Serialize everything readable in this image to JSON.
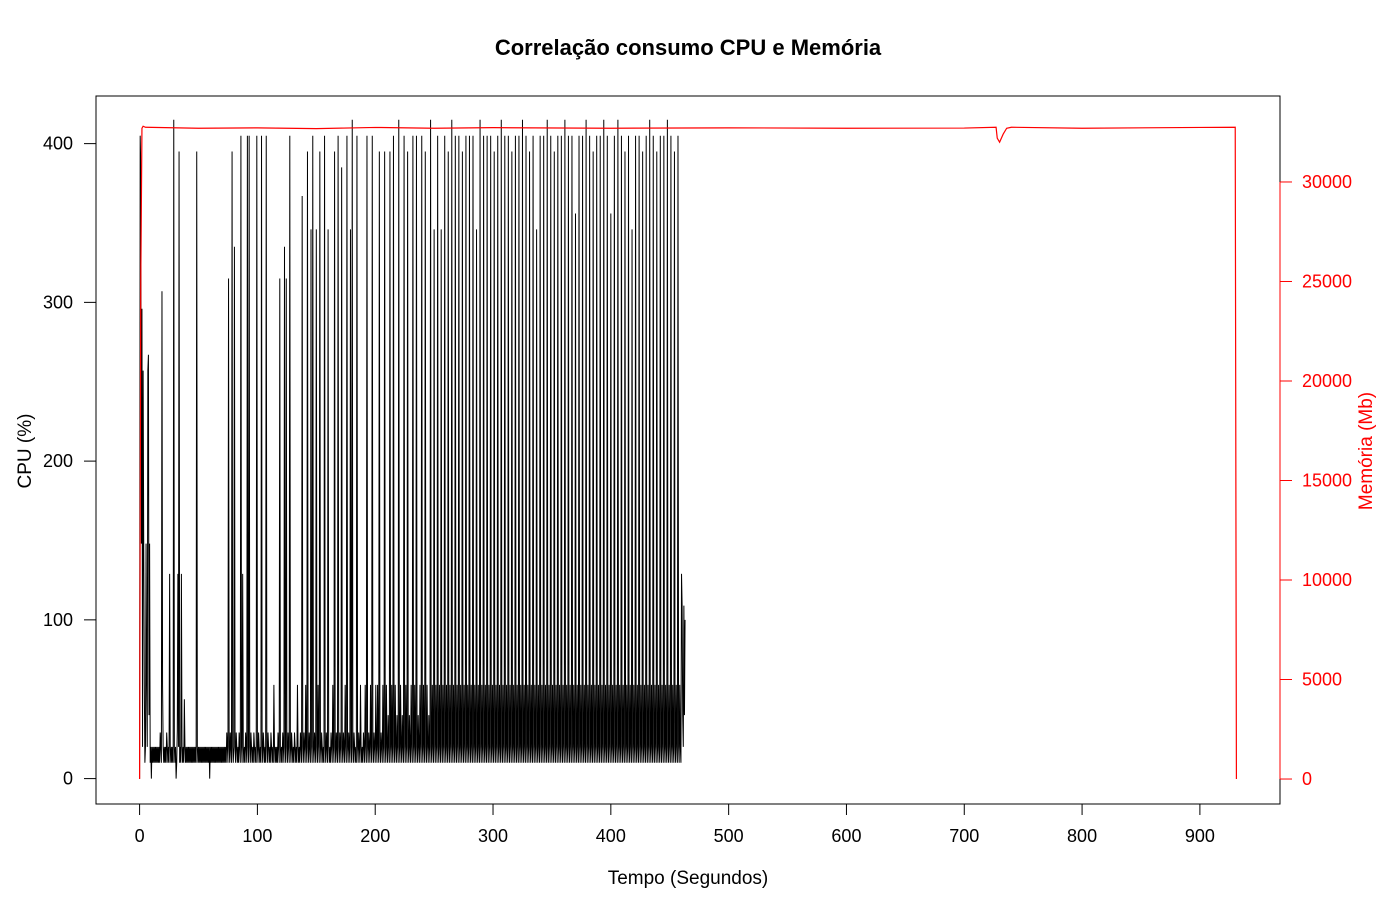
{
  "chart_data": {
    "type": "line",
    "title": "Correlação consumo CPU e Memória",
    "xlabel": "Tempo (Segundos)",
    "ylabel": "CPU (%)",
    "y2label": "Memória (Mb)",
    "xlim": [
      -37,
      968
    ],
    "ylim": [
      -16,
      430
    ],
    "y2lim": [
      -1255,
      34320
    ],
    "x_ticks": [
      0,
      100,
      200,
      300,
      400,
      500,
      600,
      700,
      800,
      900
    ],
    "y_ticks": [
      0,
      100,
      200,
      300,
      400
    ],
    "y2_ticks": [
      0,
      5000,
      10000,
      15000,
      20000,
      25000,
      30000
    ],
    "grid": false,
    "colors": {
      "cpu": "#000000",
      "memory": "#ff0000"
    },
    "series": [
      {
        "name": "CPU (%)",
        "axis": "left",
        "x_start": 0,
        "x_step": 0.5,
        "values": [
          0,
          405,
          385,
          148,
          296,
          20,
          257,
          148,
          59,
          10,
          20,
          148,
          59,
          20,
          257,
          267,
          40,
          148,
          10,
          20,
          0,
          20,
          10,
          20,
          10,
          20,
          10,
          20,
          10,
          20,
          10,
          20,
          10,
          20,
          10,
          29,
          20,
          10,
          307,
          59,
          20,
          10,
          20,
          10,
          20,
          10,
          29,
          20,
          10,
          20,
          10,
          129,
          20,
          10,
          20,
          10,
          20,
          10,
          415,
          20,
          10,
          20,
          0,
          10,
          30,
          129,
          20,
          395,
          10,
          20,
          10,
          129,
          20,
          10,
          20,
          10,
          50,
          20,
          10,
          20,
          10,
          20,
          10,
          20,
          10,
          20,
          10,
          20,
          10,
          20,
          10,
          20,
          10,
          20,
          10,
          20,
          10,
          395,
          20,
          10,
          20,
          10,
          20,
          10,
          20,
          10,
          20,
          10,
          20,
          10,
          20,
          10,
          20,
          10,
          20,
          10,
          20,
          10,
          20,
          0,
          20,
          10,
          20,
          10,
          20,
          10,
          20,
          10,
          20,
          10,
          20,
          10,
          20,
          10,
          20,
          10,
          20,
          10,
          20,
          10,
          20,
          10,
          20,
          10,
          20,
          10,
          20,
          10,
          29,
          20,
          10,
          315,
          20,
          10,
          29,
          20,
          10,
          395,
          20,
          10,
          20,
          335,
          20,
          10,
          29,
          20,
          10,
          20,
          10,
          29,
          20,
          10,
          405,
          20,
          10,
          129,
          20,
          10,
          20,
          10,
          29,
          20,
          10,
          405,
          20,
          10,
          405,
          20,
          10,
          29,
          20,
          10,
          20,
          10,
          29,
          20,
          10,
          20,
          10,
          405,
          20,
          10,
          29,
          20,
          10,
          20,
          10,
          405,
          20,
          10,
          29,
          20,
          10,
          20,
          10,
          405,
          20,
          10,
          29,
          20,
          10,
          20,
          10,
          29,
          20,
          10,
          20,
          10,
          59,
          20,
          10,
          20,
          10,
          20,
          10,
          29,
          20,
          10,
          315,
          20,
          10,
          20,
          10,
          29,
          20,
          10,
          335,
          20,
          10,
          315,
          20,
          10,
          29,
          20,
          10,
          405,
          20,
          10,
          29,
          20,
          10,
          20,
          10,
          29,
          20,
          10,
          20,
          10,
          59,
          20,
          10,
          20,
          10,
          29,
          20,
          10,
          367,
          20,
          10,
          29,
          20,
          10,
          59,
          20,
          10,
          395,
          20,
          10,
          29,
          20,
          10,
          346,
          20,
          10,
          405,
          20,
          10,
          29,
          20,
          10,
          346,
          20,
          10,
          59,
          20,
          10,
          395,
          20,
          10,
          29,
          20,
          10,
          20,
          10,
          405,
          20,
          10,
          29,
          20,
          10,
          346,
          20,
          10,
          20,
          10,
          29,
          20,
          10,
          59,
          20,
          10,
          395,
          20,
          10,
          29,
          20,
          10,
          405,
          20,
          10,
          29,
          20,
          10,
          385,
          20,
          10,
          29,
          20,
          10,
          59,
          20,
          10,
          405,
          20,
          10,
          29,
          20,
          10,
          346,
          20,
          10,
          415,
          20,
          10,
          29,
          20,
          10,
          20,
          10,
          405,
          20,
          10,
          29,
          20,
          10,
          59,
          20,
          10,
          20,
          10,
          29,
          20,
          10,
          59,
          20,
          10,
          405,
          20,
          10,
          29,
          20,
          10,
          59,
          20,
          10,
          405,
          20,
          10,
          29,
          20,
          10,
          59,
          20,
          10,
          59,
          20,
          10,
          395,
          20,
          10,
          29,
          20,
          10,
          59,
          20,
          10,
          395,
          20,
          10,
          59,
          20,
          10,
          40,
          20,
          10,
          395,
          20,
          10,
          59,
          20,
          10,
          405,
          20,
          10,
          59,
          20,
          10,
          40,
          20,
          10,
          415,
          20,
          10,
          59,
          20,
          10,
          40,
          20,
          10,
          405,
          20,
          10,
          59,
          20,
          10,
          395,
          20,
          10,
          40,
          20,
          10,
          59,
          20,
          10,
          405,
          20,
          10,
          59,
          20,
          10,
          405,
          20,
          10,
          40,
          20,
          10,
          59,
          20,
          10,
          405,
          20,
          10,
          59,
          20,
          10,
          395,
          20,
          10,
          59,
          20,
          10,
          40,
          20,
          10,
          415,
          20,
          10,
          59,
          20,
          10,
          346,
          20,
          10,
          59,
          20,
          10,
          405,
          20,
          10,
          59,
          20,
          10,
          346,
          20,
          10,
          59,
          20,
          10,
          405,
          20,
          10,
          59,
          20,
          10,
          395,
          20,
          10,
          59,
          20,
          10,
          415,
          20,
          10,
          59,
          20,
          10,
          405,
          20,
          10,
          59,
          20,
          10,
          405,
          20,
          10,
          59,
          20,
          10,
          395,
          20,
          10,
          59,
          20,
          10,
          405,
          20,
          10,
          59,
          20,
          10,
          405,
          20,
          10,
          59,
          20,
          10,
          405,
          20,
          10,
          59,
          20,
          10,
          346,
          20,
          10,
          59,
          20,
          10,
          415,
          20,
          10,
          59,
          20,
          10,
          405,
          20,
          10,
          59,
          20,
          10,
          405,
          20,
          10,
          59,
          20,
          10,
          405,
          20,
          10,
          59,
          20,
          10,
          395,
          20,
          10,
          59,
          20,
          10,
          405,
          20,
          10,
          59,
          20,
          10,
          415,
          20,
          10,
          59,
          20,
          10,
          405,
          20,
          10,
          59,
          20,
          10,
          405,
          20,
          10,
          59,
          20,
          10,
          395,
          20,
          10,
          59,
          20,
          10,
          405,
          20,
          10,
          59,
          20,
          10,
          405,
          20,
          10,
          59,
          20,
          10,
          415,
          20,
          10,
          59,
          20,
          10,
          405,
          20,
          10,
          59,
          20,
          10,
          395,
          20,
          10,
          59,
          20,
          10,
          405,
          20,
          10,
          59,
          20,
          10,
          346,
          20,
          10,
          59,
          20,
          10,
          405,
          20,
          10,
          59,
          20,
          10,
          405,
          20,
          10,
          59,
          20,
          10,
          415,
          20,
          10,
          59,
          20,
          10,
          405,
          20,
          10,
          59,
          20,
          10,
          395,
          20,
          10,
          59,
          20,
          10,
          405,
          20,
          10,
          59,
          20,
          10,
          405,
          20,
          10,
          59,
          20,
          10,
          415,
          20,
          10,
          59,
          20,
          10,
          405,
          20,
          10,
          59,
          20,
          10,
          405,
          20,
          10,
          59,
          20,
          10,
          356,
          20,
          10,
          59,
          20,
          10,
          405,
          20,
          10,
          59,
          20,
          10,
          405,
          20,
          10,
          59,
          20,
          10,
          415,
          20,
          10,
          59,
          20,
          10,
          405,
          20,
          10,
          59,
          20,
          10,
          395,
          20,
          10,
          59,
          20,
          10,
          405,
          20,
          10,
          59,
          20,
          10,
          405,
          20,
          10,
          59,
          20,
          10,
          415,
          20,
          10,
          59,
          20,
          10,
          405,
          20,
          10,
          59,
          20,
          10,
          356,
          20,
          10,
          59,
          20,
          10,
          405,
          20,
          10,
          59,
          20,
          10,
          415,
          20,
          10,
          59,
          20,
          10,
          405,
          20,
          10,
          59,
          20,
          10,
          395,
          20,
          10,
          59,
          20,
          10,
          405,
          20,
          10,
          59,
          20,
          10,
          346,
          20,
          10,
          59,
          20,
          10,
          405,
          20,
          10,
          59,
          20,
          10,
          405,
          20,
          10,
          59,
          20,
          10,
          395,
          20,
          10,
          59,
          20,
          10,
          405,
          20,
          10,
          59,
          20,
          10,
          415,
          20,
          10,
          59,
          20,
          10,
          405,
          20,
          10,
          59,
          20,
          10,
          395,
          20,
          10,
          59,
          20,
          10,
          405,
          20,
          10,
          59,
          20,
          10,
          405,
          20,
          10,
          59,
          20,
          10,
          415,
          20,
          10,
          59,
          20,
          10,
          405,
          20,
          10,
          59,
          20,
          10,
          395,
          20,
          10,
          59,
          20,
          10,
          405,
          20,
          10,
          59,
          20,
          10,
          129,
          109,
          40,
          20,
          109,
          40,
          100
        ]
      },
      {
        "name": "Memória (Mb)",
        "axis": "right",
        "x": [
          0,
          1,
          2,
          3,
          5,
          50,
          100,
          150,
          200,
          250,
          300,
          400,
          500,
          600,
          700,
          727,
          728,
          730,
          733,
          736,
          740,
          800,
          900,
          930,
          931
        ],
        "values": [
          0,
          25000,
          32700,
          32800,
          32750,
          32700,
          32720,
          32680,
          32740,
          32700,
          32730,
          32700,
          32720,
          32700,
          32710,
          32750,
          32200,
          32000,
          32400,
          32700,
          32750,
          32700,
          32740,
          32750,
          0
        ]
      }
    ]
  }
}
